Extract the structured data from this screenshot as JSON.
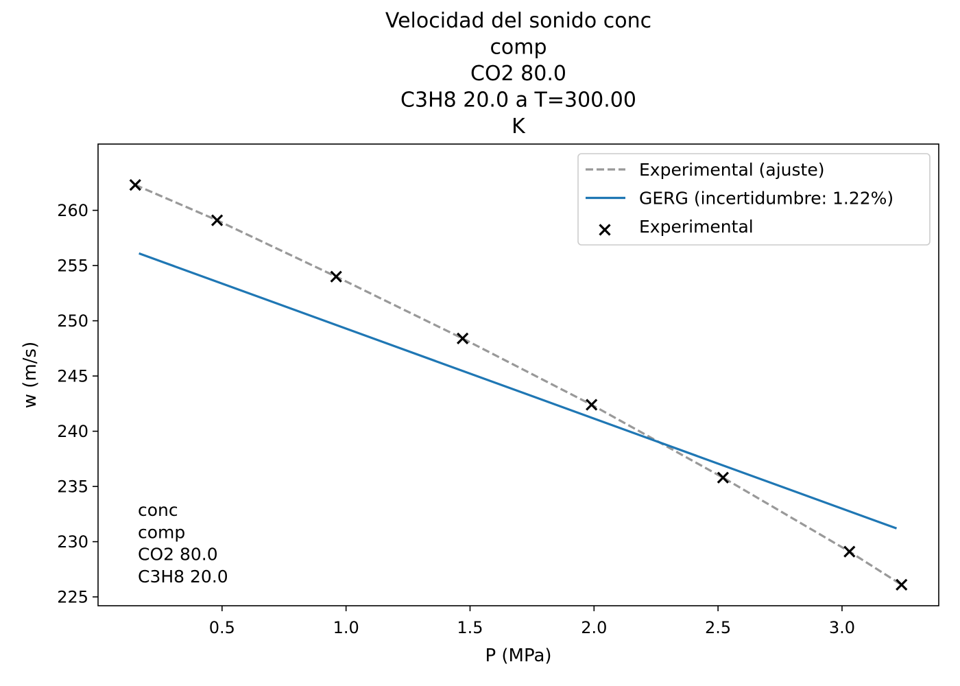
{
  "chart_data": {
    "type": "line",
    "title_lines": [
      "Velocidad del sonido       conc",
      "comp",
      "CO2   80.0",
      "C3H8  20.0 a T=300.00",
      "K"
    ],
    "xlabel": "P (MPa)",
    "ylabel": "w (m/s)",
    "xlim": [
      0.0,
      3.39
    ],
    "ylim": [
      224.2,
      266.0
    ],
    "xticks": [
      0.5,
      1.0,
      1.5,
      2.0,
      2.5,
      3.0
    ],
    "xtick_labels": [
      "0.5",
      "1.0",
      "1.5",
      "2.0",
      "2.5",
      "3.0"
    ],
    "yticks": [
      225,
      230,
      235,
      240,
      245,
      250,
      255,
      260
    ],
    "ytick_labels": [
      "225",
      "230",
      "235",
      "240",
      "245",
      "250",
      "255",
      "260"
    ],
    "legend_position": "upper right",
    "series": [
      {
        "name": "Experimental (ajuste)",
        "kind": "line",
        "style": "dashed",
        "color": "#999999",
        "x": [
          0.15,
          0.48,
          0.96,
          1.47,
          1.99,
          2.52,
          3.03,
          3.24
        ],
        "y": [
          262.3,
          259.1,
          254.0,
          248.4,
          242.4,
          235.8,
          229.1,
          226.1
        ]
      },
      {
        "name": "GERG (incertidumbre: 1.22%)",
        "kind": "line",
        "style": "solid",
        "color": "#1f77b4",
        "x": [
          0.165,
          3.22
        ],
        "y": [
          256.1,
          231.2
        ]
      },
      {
        "name": "Experimental",
        "kind": "scatter",
        "marker": "x",
        "color": "#000000",
        "x": [
          0.15,
          0.48,
          0.96,
          1.47,
          1.99,
          2.52,
          3.03,
          3.24
        ],
        "y": [
          262.3,
          259.1,
          254.0,
          248.4,
          242.4,
          235.8,
          229.1,
          226.1
        ]
      }
    ],
    "annotation_lines": [
      "     conc",
      "comp",
      "CO2   80.0",
      "C3H8  20.0"
    ]
  }
}
